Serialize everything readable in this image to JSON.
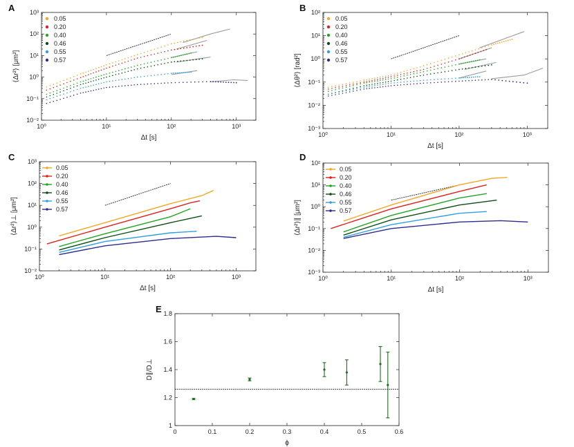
{
  "colors": {
    "0.05": "#f5a623",
    "0.20": "#e0201b",
    "0.40": "#1fa51f",
    "0.46": "#0b4d12",
    "0.55": "#2f9fde",
    "0.57": "#2c2a8c",
    "gray": "#9a9a9a",
    "errorbar": "#1e6b1e"
  },
  "chart_data": [
    {
      "id": "A",
      "type": "scatter",
      "letter": "A",
      "xlabel": "Δt [s]",
      "ylabel": "⟨Δr²⟩ [μm²]",
      "xscale": "log",
      "yscale": "log",
      "xlim": [
        1,
        2000
      ],
      "ylim": [
        0.01,
        1000
      ],
      "xticks": [
        1,
        10,
        100,
        1000
      ],
      "xtick_labels": [
        "10⁰",
        "10¹",
        "10²",
        "10³"
      ],
      "yticks": [
        0.01,
        0.1,
        1,
        10,
        100,
        1000
      ],
      "ytick_labels": [
        "10⁻²",
        "10⁻¹",
        "10⁰",
        "10¹",
        "10²",
        "10³"
      ],
      "legend_style": "dot",
      "reference_line": {
        "x": [
          10,
          100
        ],
        "y": [
          10,
          100
        ]
      },
      "series": [
        {
          "name": "0.05",
          "x": [
            1.2,
            4,
            10,
            30,
            100,
            300
          ],
          "y": [
            0.35,
            1.4,
            3.7,
            11,
            35,
            70
          ],
          "gray_tail": {
            "x": [
              150,
              400,
              800
            ],
            "y": [
              40,
              100,
              170
            ]
          }
        },
        {
          "name": "0.20",
          "x": [
            1.2,
            4,
            10,
            30,
            100,
            300
          ],
          "y": [
            0.25,
            0.95,
            2.6,
            7.6,
            18,
            30
          ],
          "gray_tail": {
            "x": [
              120,
              350
            ],
            "y": [
              20,
              50
            ]
          }
        },
        {
          "name": "0.40",
          "x": [
            1.2,
            4,
            10,
            30,
            100,
            200
          ],
          "y": [
            0.16,
            0.6,
            1.4,
            3.5,
            8,
            13
          ],
          "gray_tail": {
            "x": [
              100,
              250
            ],
            "y": [
              8,
              15
            ]
          }
        },
        {
          "name": "0.46",
          "x": [
            1.2,
            4,
            10,
            30,
            100,
            300
          ],
          "y": [
            0.12,
            0.45,
            1.0,
            2.4,
            5,
            7
          ],
          "gray_tail": {
            "x": [
              120,
              400
            ],
            "y": [
              5,
              8.5
            ]
          }
        },
        {
          "name": "0.55",
          "x": [
            1.2,
            4,
            10,
            30,
            100,
            200
          ],
          "y": [
            0.09,
            0.3,
            0.6,
            1.0,
            1.5,
            1.7
          ],
          "gray_tail": {
            "x": [
              100,
              250
            ],
            "y": [
              1.3,
              2.0
            ]
          }
        },
        {
          "name": "0.57",
          "x": [
            1.2,
            4,
            10,
            30,
            100,
            400,
            1000
          ],
          "y": [
            0.06,
            0.18,
            0.33,
            0.45,
            0.55,
            0.62,
            0.55
          ],
          "gray_tail": {
            "x": [
              400,
              900,
              1500
            ],
            "y": [
              0.6,
              0.75,
              0.7
            ]
          }
        }
      ]
    },
    {
      "id": "B",
      "type": "scatter",
      "letter": "B",
      "xlabel": "Δt [s]",
      "ylabel": "⟨Δθ²⟩ [rad²]",
      "xscale": "log",
      "yscale": "log",
      "xlim": [
        1,
        2000
      ],
      "ylim": [
        0.001,
        100
      ],
      "xticks": [
        1,
        10,
        100,
        1000
      ],
      "xtick_labels": [
        "10⁰",
        "10¹",
        "10²",
        "10³"
      ],
      "yticks": [
        0.001,
        0.01,
        0.1,
        1,
        10,
        100
      ],
      "ytick_labels": [
        "10⁻³",
        "10⁻²",
        "10⁻¹",
        "10⁰",
        "10¹",
        "10²"
      ],
      "legend_style": "dot",
      "reference_line": {
        "x": [
          10,
          100
        ],
        "y": [
          1,
          10
        ]
      },
      "series": [
        {
          "name": "0.05",
          "x": [
            1.2,
            4,
            10,
            30,
            100,
            300,
            600
          ],
          "y": [
            0.06,
            0.12,
            0.2,
            0.5,
            1.5,
            4,
            7
          ],
          "gray_tail": {
            "x": [
              200,
              500,
              900
            ],
            "y": [
              3,
              8,
              15
            ]
          }
        },
        {
          "name": "0.20",
          "x": [
            1.2,
            4,
            10,
            30,
            100,
            250
          ],
          "y": [
            0.05,
            0.1,
            0.17,
            0.35,
            1.0,
            2.5
          ],
          "gray_tail": {
            "x": [
              100,
              300
            ],
            "y": [
              1.0,
              3
            ]
          }
        },
        {
          "name": "0.40",
          "x": [
            1.2,
            4,
            10,
            30,
            100,
            200
          ],
          "y": [
            0.04,
            0.09,
            0.14,
            0.28,
            0.6,
            0.9
          ],
          "gray_tail": {
            "x": [
              100,
              250
            ],
            "y": [
              0.6,
              1.0
            ]
          }
        },
        {
          "name": "0.46",
          "x": [
            1.2,
            4,
            10,
            30,
            100,
            300
          ],
          "y": [
            0.03,
            0.07,
            0.11,
            0.2,
            0.35,
            0.55
          ],
          "gray_tail": {
            "x": [
              120,
              350
            ],
            "y": [
              0.35,
              0.7
            ]
          }
        },
        {
          "name": "0.55",
          "x": [
            1.2,
            4,
            10,
            30,
            100,
            200
          ],
          "y": [
            0.03,
            0.06,
            0.09,
            0.12,
            0.15,
            0.17
          ],
          "gray_tail": {
            "x": [
              100,
              250
            ],
            "y": [
              0.15,
              0.3
            ]
          }
        },
        {
          "name": "0.57",
          "x": [
            1.2,
            4,
            10,
            30,
            100,
            300,
            1000
          ],
          "y": [
            0.025,
            0.05,
            0.07,
            0.09,
            0.11,
            0.13,
            0.09
          ],
          "gray_tail": {
            "x": [
              300,
              900,
              1700
            ],
            "y": [
              0.14,
              0.2,
              0.4
            ]
          }
        }
      ]
    },
    {
      "id": "C",
      "type": "line",
      "letter": "C",
      "xlabel": "Δt [s]",
      "ylabel": "⟨Δr²⟩⊥ [μm²]",
      "xscale": "log",
      "yscale": "log",
      "xlim": [
        1,
        2000
      ],
      "ylim": [
        0.01,
        1000
      ],
      "xticks": [
        1,
        10,
        100,
        1000
      ],
      "xtick_labels": [
        "10⁰",
        "10¹",
        "10²",
        "10³"
      ],
      "yticks": [
        0.01,
        0.1,
        1,
        10,
        100,
        1000
      ],
      "ytick_labels": [
        "10⁻²",
        "10⁻¹",
        "10⁰",
        "10¹",
        "10²",
        "10³"
      ],
      "legend_style": "line",
      "reference_line": {
        "x": [
          10,
          100
        ],
        "y": [
          10,
          100
        ]
      },
      "series": [
        {
          "name": "0.05",
          "x": [
            2,
            10,
            100,
            300,
            450
          ],
          "y": [
            0.4,
            1.6,
            12,
            28,
            48
          ]
        },
        {
          "name": "0.20",
          "x": [
            1.3,
            10,
            100,
            200,
            280
          ],
          "y": [
            0.17,
            1.0,
            7,
            13,
            16
          ]
        },
        {
          "name": "0.40",
          "x": [
            2,
            10,
            100,
            200
          ],
          "y": [
            0.13,
            0.5,
            3,
            7
          ]
        },
        {
          "name": "0.46",
          "x": [
            2,
            10,
            100,
            300
          ],
          "y": [
            0.09,
            0.33,
            1.6,
            3.3
          ]
        },
        {
          "name": "0.55",
          "x": [
            2,
            10,
            100,
            250
          ],
          "y": [
            0.07,
            0.22,
            0.55,
            0.65
          ]
        },
        {
          "name": "0.57",
          "x": [
            2,
            10,
            100,
            500,
            1000
          ],
          "y": [
            0.055,
            0.14,
            0.3,
            0.38,
            0.33
          ]
        }
      ]
    },
    {
      "id": "D",
      "type": "line",
      "letter": "D",
      "xlabel": "Δt [s]",
      "ylabel": "⟨Δr²⟩∥ [μm²]",
      "xscale": "log",
      "yscale": "log",
      "xlim": [
        1,
        2000
      ],
      "ylim": [
        0.001,
        100
      ],
      "xticks": [
        1,
        10,
        100,
        1000
      ],
      "xtick_labels": [
        "10⁰",
        "10¹",
        "10²",
        "10³"
      ],
      "yticks": [
        0.001,
        0.01,
        0.1,
        1,
        10,
        100
      ],
      "ytick_labels": [
        "10⁻³",
        "10⁻²",
        "10⁻¹",
        "10⁰",
        "10¹",
        "10²"
      ],
      "legend_style": "line",
      "reference_line": {
        "x": [
          10,
          100
        ],
        "y": [
          2,
          10
        ]
      },
      "series": [
        {
          "name": "0.05",
          "x": [
            2,
            10,
            100,
            300,
            500
          ],
          "y": [
            0.22,
            1.2,
            10,
            20,
            22
          ]
        },
        {
          "name": "0.20",
          "x": [
            1.3,
            10,
            100,
            250
          ],
          "y": [
            0.1,
            0.8,
            5,
            10
          ]
        },
        {
          "name": "0.40",
          "x": [
            2,
            10,
            100,
            250
          ],
          "y": [
            0.07,
            0.4,
            2.5,
            4
          ]
        },
        {
          "name": "0.46",
          "x": [
            2,
            10,
            100,
            350
          ],
          "y": [
            0.05,
            0.25,
            1.2,
            2
          ]
        },
        {
          "name": "0.55",
          "x": [
            2,
            10,
            100,
            250
          ],
          "y": [
            0.04,
            0.15,
            0.5,
            0.6
          ]
        },
        {
          "name": "0.57",
          "x": [
            2,
            10,
            100,
            400,
            1000
          ],
          "y": [
            0.035,
            0.1,
            0.2,
            0.23,
            0.2
          ]
        }
      ]
    },
    {
      "id": "E",
      "type": "scatter",
      "letter": "E",
      "xlabel": "ϕ",
      "ylabel": "D∥/D⊥",
      "xscale": "linear",
      "yscale": "linear",
      "xlim": [
        0,
        0.6
      ],
      "ylim": [
        1,
        1.8
      ],
      "xticks": [
        0,
        0.1,
        0.2,
        0.3,
        0.4,
        0.5,
        0.6
      ],
      "xtick_labels": [
        "0",
        "0.1",
        "0.2",
        "0.3",
        "0.4",
        "0.5",
        "0.6"
      ],
      "yticks": [
        1,
        1.2,
        1.4,
        1.6,
        1.8
      ],
      "ytick_labels": [
        "1",
        "1.2",
        "1.4",
        "1.6",
        "1.8"
      ],
      "reference_line": {
        "y": 1.26
      },
      "points": [
        {
          "x": 0.05,
          "y": 1.19,
          "err": 0.005
        },
        {
          "x": 0.2,
          "y": 1.33,
          "err": 0.01
        },
        {
          "x": 0.4,
          "y": 1.4,
          "err": 0.05
        },
        {
          "x": 0.46,
          "y": 1.38,
          "err": 0.09
        },
        {
          "x": 0.55,
          "y": 1.44,
          "err": 0.125
        },
        {
          "x": 0.57,
          "y": 1.29,
          "err": 0.235
        }
      ]
    }
  ]
}
